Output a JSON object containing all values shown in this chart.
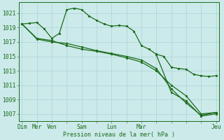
{
  "background_color": "#cceaea",
  "grid_color": "#aad4d4",
  "line_color": "#1a6b1a",
  "marker_color": "#1a6b1a",
  "xlabel": "Pression niveau de la mer( hPa )",
  "ylim": [
    1006.0,
    1022.5
  ],
  "yticks": [
    1007,
    1009,
    1011,
    1013,
    1015,
    1017,
    1019,
    1021
  ],
  "xlim": [
    -0.2,
    13.2
  ],
  "xtick_positions": [
    0,
    1,
    2,
    3,
    4,
    5,
    6,
    7,
    8,
    9,
    10,
    11,
    12,
    13
  ],
  "xtick_labels": [
    "Dim",
    "Mer",
    "Ven",
    "",
    "Sam",
    "",
    "Lun",
    "",
    "Mar",
    "",
    "",
    "",
    "",
    "Jeu"
  ],
  "series1_x": [
    0,
    0.5,
    1,
    1.5,
    2,
    2.5,
    3,
    3.5,
    4,
    4.5,
    5,
    5.5,
    6,
    6.5,
    7,
    7.5,
    8,
    8.5,
    9,
    9.5,
    10,
    10.5,
    11,
    11.5,
    12,
    12.5,
    13
  ],
  "series1_y": [
    1019.5,
    1019.6,
    1019.7,
    1018.8,
    1017.5,
    1018.2,
    1021.5,
    1021.7,
    1021.5,
    1020.6,
    1020.0,
    1019.5,
    1019.2,
    1019.3,
    1019.2,
    1018.5,
    1016.5,
    1016.0,
    1015.3,
    1015.0,
    1013.5,
    1013.3,
    1013.2,
    1012.5,
    1012.3,
    1012.2,
    1012.3
  ],
  "series2_x": [
    0,
    1,
    2,
    3,
    4,
    5,
    6,
    7,
    8,
    9,
    10,
    11,
    12,
    13
  ],
  "series2_y": [
    1019.5,
    1017.5,
    1017.2,
    1016.5,
    1016.0,
    1015.7,
    1015.3,
    1014.8,
    1014.2,
    1013.0,
    1011.0,
    1009.5,
    1007.0,
    1007.2
  ],
  "series3_x": [
    0,
    1,
    2,
    3,
    4,
    5,
    6,
    7,
    8,
    9,
    10,
    11,
    12,
    13
  ],
  "series3_y": [
    1019.5,
    1017.4,
    1017.0,
    1016.8,
    1016.3,
    1015.8,
    1015.4,
    1015.0,
    1014.5,
    1013.3,
    1010.5,
    1008.5,
    1006.8,
    1007.2
  ],
  "series4_x": [
    9,
    10,
    11,
    12,
    13
  ],
  "series4_y": [
    1015.2,
    1010.0,
    1008.8,
    1006.7,
    1007.0
  ],
  "ms": 2.0,
  "lw": 0.9
}
